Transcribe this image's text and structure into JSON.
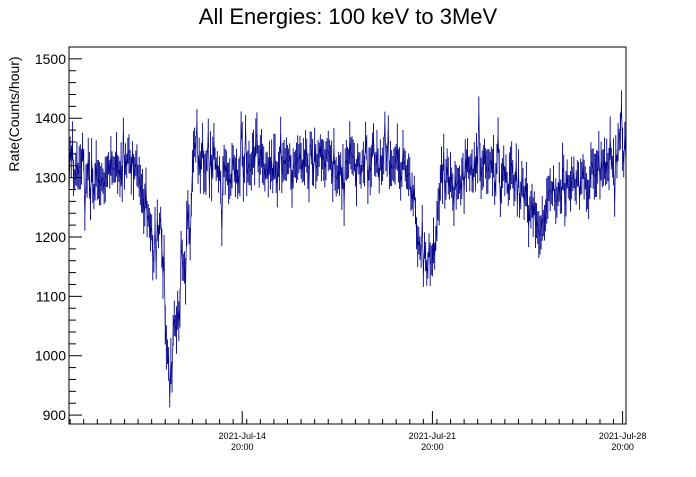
{
  "chart_data": {
    "type": "line",
    "title": "All Energies:  100 keV to 3MeV",
    "xlabel": "",
    "ylabel": "Rate(Counts/hour)",
    "xlim": [
      "2021-Jul-08 11:00",
      "2021-Jul-28 23:00"
    ],
    "ylim": [
      885,
      1520
    ],
    "grid": false,
    "legend": "none",
    "y_ticks": [
      "900",
      "1000",
      "1100",
      "1200",
      "1300",
      "1400",
      "1500"
    ],
    "x_ticks": [
      {
        "date": "2021-Jul-14",
        "time": "20:00"
      },
      {
        "date": "2021-Jul-21",
        "time": "20:00"
      },
      {
        "date": "2021-Jul-28",
        "time": "20:00"
      }
    ],
    "series_color": "#00008b",
    "series": [
      {
        "x_start": "2021-Jul-08 11:00",
        "x_step_hours": 1,
        "x_end": "2021-Jul-28 23:00",
        "profile": {
          "dates": [
            "2021-Jul-08 11:00",
            "2021-Jul-09 02:00",
            "2021-Jul-09 14:00",
            "2021-Jul-10 02:00",
            "2021-Jul-10 20:00",
            "2021-Jul-11 08:00",
            "2021-Jul-11 14:00",
            "2021-Jul-11 20:00",
            "2021-Jul-12 00:00",
            "2021-Jul-12 04:00",
            "2021-Jul-12 12:00",
            "2021-Jul-13 02:00",
            "2021-Jul-13 18:00",
            "2021-Jul-14 02:00",
            "2021-Jul-14 20:00",
            "2021-Jul-17 20:00",
            "2021-Jul-19 20:00",
            "2021-Jul-21 00:00",
            "2021-Jul-21 08:00",
            "2021-Jul-21 20:00",
            "2021-Jul-22 04:00",
            "2021-Jul-22 16:00",
            "2021-Jul-23 16:00",
            "2021-Jul-24 20:00",
            "2021-Jul-25 08:00",
            "2021-Jul-25 20:00",
            "2021-Jul-26 02:00",
            "2021-Jul-26 14:00",
            "2021-Jul-27 08:00",
            "2021-Jul-27 20:00",
            "2021-Jul-28 12:00",
            "2021-Jul-28 23:00"
          ],
          "values": [
            1330,
            1305,
            1290,
            1320,
            1320,
            1240,
            1180,
            1220,
            1050,
            960,
            1080,
            1340,
            1330,
            1300,
            1320,
            1325,
            1330,
            1310,
            1180,
            1160,
            1285,
            1300,
            1320,
            1300,
            1260,
            1200,
            1270,
            1290,
            1300,
            1310,
            1330,
            1350
          ]
        },
        "noise": 42,
        "spike_probability": 0.18,
        "spike_amplitude": 70
      }
    ]
  }
}
